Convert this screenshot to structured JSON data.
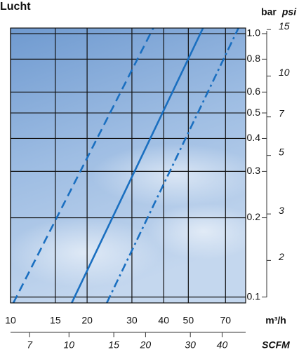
{
  "chart_data": {
    "type": "line",
    "title": "Lucht",
    "y_label": "bar",
    "y2_label": "psi",
    "x_label": "m³/h",
    "x2_label": "SCFM",
    "log_x": true,
    "log_y": true,
    "grid": true,
    "xlim": [
      10,
      84
    ],
    "ylim": [
      0.095,
      1.05
    ],
    "xticks": [
      10,
      15,
      20,
      30,
      40,
      50,
      70
    ],
    "yticks": [
      0.1,
      0.2,
      0.3,
      0.4,
      0.5,
      0.6,
      0.8,
      {
        "value": 1,
        "label": "1.0"
      }
    ],
    "y2lim": [
      1.38,
      15.2
    ],
    "y2ticks": [
      2,
      3,
      5,
      7,
      10,
      15
    ],
    "x2lim": [
      5.89,
      49.5
    ],
    "x2ticks": [
      7,
      10,
      15,
      20,
      30,
      40
    ],
    "series": [
      {
        "color": "#1a6fc0",
        "dash": "dashed",
        "x": [
          10.26,
          36.4
        ],
        "values": [
          0.095,
          1.05
        ]
      },
      {
        "color": "#1a6fc0",
        "dash": "solid",
        "x": [
          17.4,
          57.1
        ],
        "values": [
          0.095,
          1.05
        ]
      },
      {
        "color": "#1a6fc0",
        "dash": "dashdot",
        "x": [
          23.9,
          78.7
        ],
        "values": [
          0.095,
          1.05
        ]
      }
    ]
  }
}
